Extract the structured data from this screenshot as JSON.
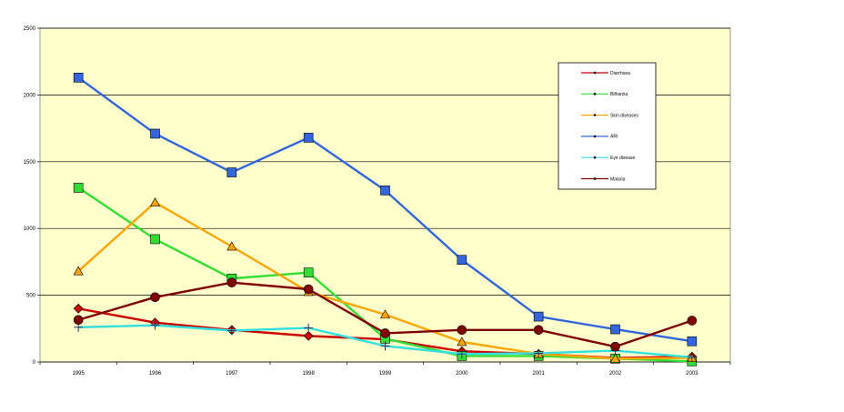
{
  "chart_data": {
    "type": "line",
    "title": "",
    "xlabel": "",
    "ylabel": "",
    "x": [
      "1995",
      "1996",
      "1997",
      "1998",
      "1999",
      "2000",
      "2001",
      "2002",
      "2003"
    ],
    "ylim": [
      0,
      2500
    ],
    "yticks": [
      "0",
      "500",
      "1000",
      "1500",
      "2000",
      "2500"
    ],
    "grid": "horizontal",
    "legend_position": "top-right",
    "plot_background": "#FFFFCC",
    "series": [
      {
        "name": "Diarrhoea",
        "color": "#CC0000",
        "marker": "diamond",
        "values": [
          400,
          295,
          240,
          195,
          170,
          80,
          60,
          30,
          40
        ]
      },
      {
        "name": "Bilharzia",
        "color": "#33DD33",
        "marker": "square",
        "values": [
          1305,
          920,
          625,
          670,
          175,
          45,
          45,
          25,
          5
        ]
      },
      {
        "name": "Skin diseases",
        "color": "#FFA500",
        "marker": "triangle",
        "values": [
          680,
          1195,
          865,
          525,
          355,
          150,
          60,
          25,
          30
        ]
      },
      {
        "name": "ARI",
        "color": "#3366DD",
        "marker": "square",
        "values": [
          2130,
          1710,
          1420,
          1680,
          1285,
          765,
          340,
          245,
          155
        ]
      },
      {
        "name": "Eye disease",
        "color": "#33E0E0",
        "marker": "cross",
        "values": [
          260,
          275,
          235,
          255,
          120,
          60,
          65,
          85,
          35
        ]
      },
      {
        "name": "Malaria",
        "color": "#800000",
        "marker": "circle",
        "values": [
          315,
          485,
          595,
          545,
          215,
          240,
          240,
          115,
          310
        ]
      }
    ]
  }
}
